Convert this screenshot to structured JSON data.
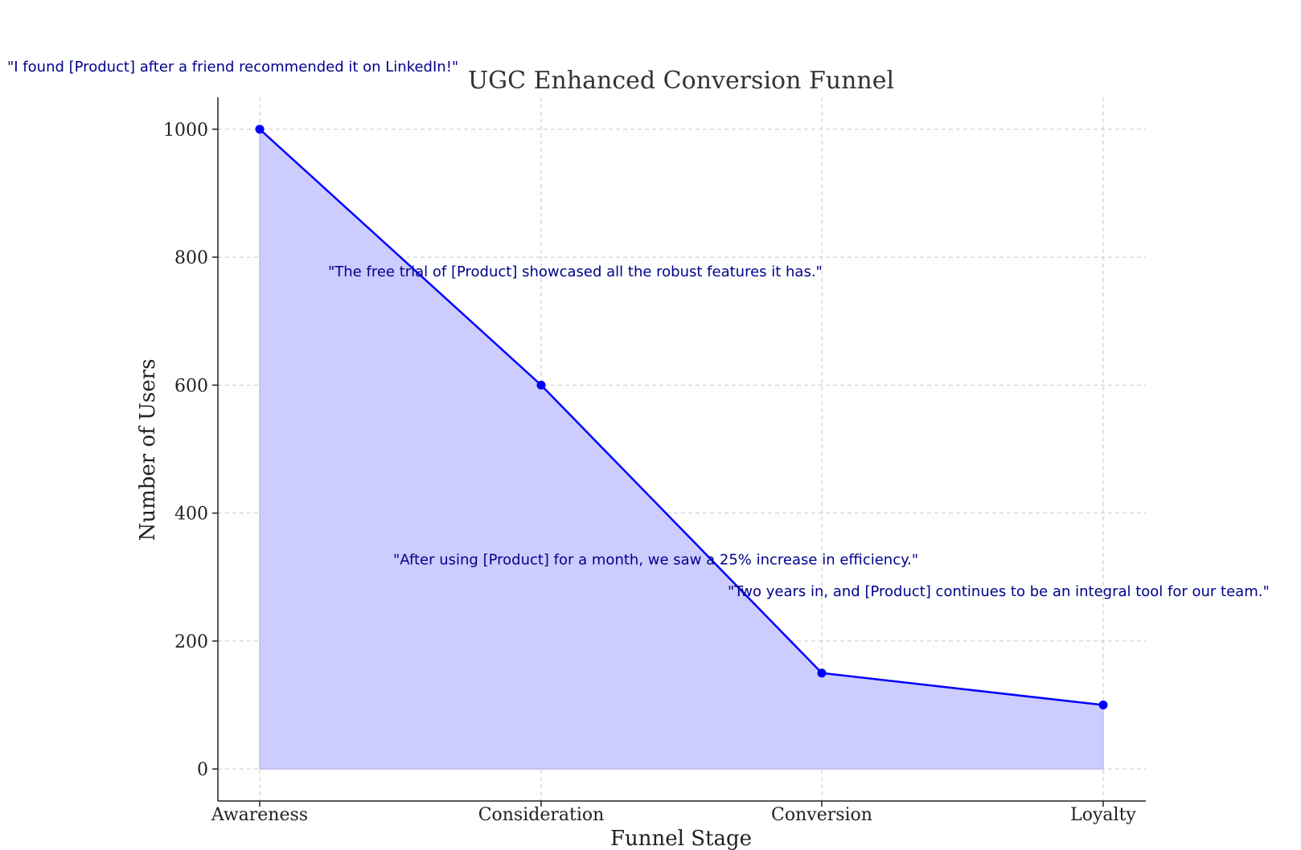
{
  "chart_data": {
    "type": "area",
    "title": "UGC Enhanced Conversion Funnel",
    "xlabel": "Funnel Stage",
    "ylabel": "Number of Users",
    "categories": [
      "Awareness",
      "Consideration",
      "Conversion",
      "Loyalty"
    ],
    "values": [
      1000,
      600,
      150,
      100
    ],
    "ylim": [
      -50,
      1050
    ],
    "yticks": [
      0,
      200,
      400,
      600,
      800,
      1000
    ],
    "grid": true,
    "legend": "none",
    "colors": {
      "line": "#0000ff",
      "fill": "#ccccff",
      "annotation": "#00008b",
      "text": "#333333"
    },
    "annotations": [
      {
        "text": "\"I found [Product] after a friend recommended it on LinkedIn!\"",
        "x": "Awareness",
        "y": 1100
      },
      {
        "text": "\"The free trial of [Product] showcased all the robust features it has.\"",
        "x": "Consideration",
        "y": 780
      },
      {
        "text": "\"After using [Product] for a month, we saw a 25% increase in efficiency.\"",
        "x": "Conversion",
        "y": 330
      },
      {
        "text": "\"Two years in, and [Product] continues to be an integral tool for our team.\"",
        "x": "Loyalty",
        "y": 280
      }
    ]
  }
}
